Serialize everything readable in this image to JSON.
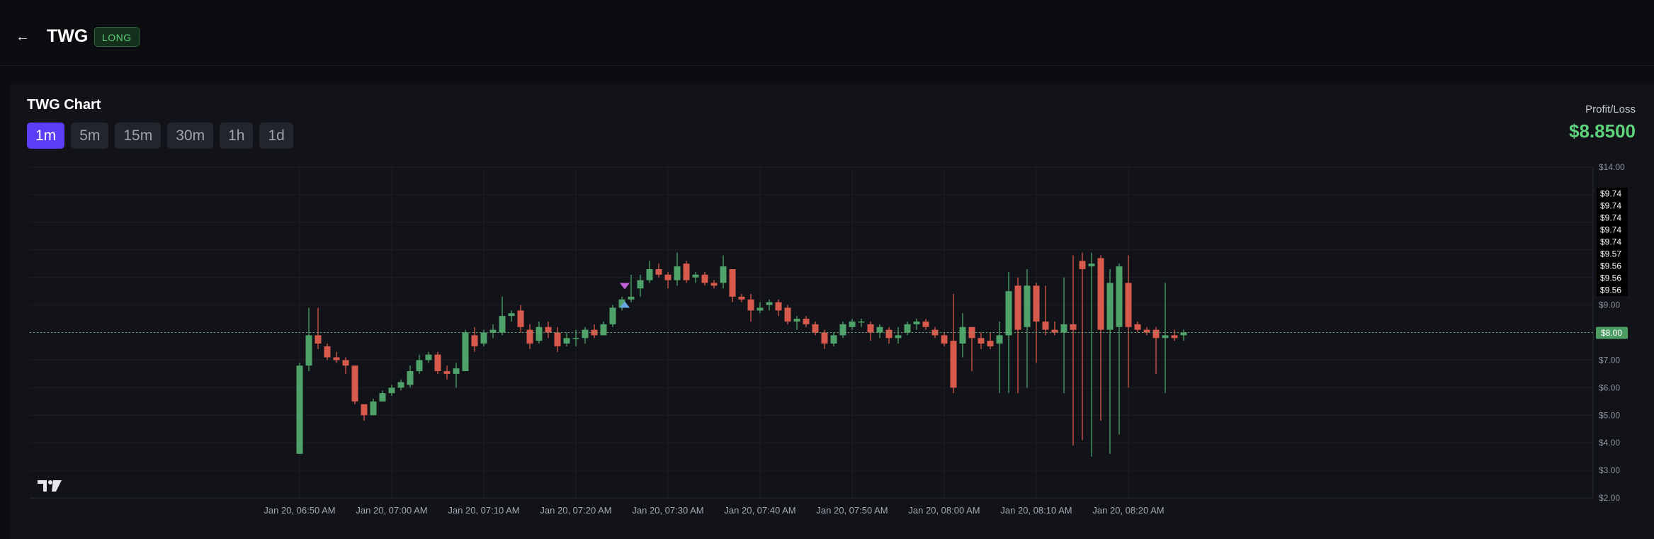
{
  "header": {
    "back_icon": "arrow-left-icon",
    "symbol": "TWG",
    "side_badge": "LONG"
  },
  "chart_panel": {
    "title": "TWG Chart",
    "timeframes": [
      "1m",
      "5m",
      "15m",
      "30m",
      "1h",
      "1d"
    ],
    "active_timeframe": "1m",
    "pnl_label": "Profit/Loss",
    "pnl_value": "$8.8500",
    "colors": {
      "up": "#4fa36a",
      "down": "#d85a4c",
      "accent": "#5b3ff6",
      "pnl": "#5fd27c"
    }
  },
  "chart_data": {
    "type": "candlestick",
    "title": "",
    "xlabel": "",
    "ylabel": "",
    "ylim": [
      2,
      14
    ],
    "y_ticks": [
      {
        "value": 2,
        "label": "$2.00"
      },
      {
        "value": 3,
        "label": "$3.00"
      },
      {
        "value": 4,
        "label": "$4.00"
      },
      {
        "value": 5,
        "label": "$5.00"
      },
      {
        "value": 6,
        "label": "$6.00"
      },
      {
        "value": 7,
        "label": "$7.00"
      },
      {
        "value": 9,
        "label": "$9.00"
      },
      {
        "value": 14,
        "label": "$14.00"
      }
    ],
    "x_ticks": [
      {
        "index": 0,
        "label": "Jan 20, 06:50 AM"
      },
      {
        "index": 10,
        "label": "Jan 20, 07:00 AM"
      },
      {
        "index": 20,
        "label": "Jan 20, 07:10 AM"
      },
      {
        "index": 30,
        "label": "Jan 20, 07:20 AM"
      },
      {
        "index": 40,
        "label": "Jan 20, 07:30 AM"
      },
      {
        "index": 50,
        "label": "Jan 20, 07:40 AM"
      },
      {
        "index": 60,
        "label": "Jan 20, 07:50 AM"
      },
      {
        "index": 70,
        "label": "Jan 20, 08:00 AM"
      },
      {
        "index": 80,
        "label": "Jan 20, 08:10 AM"
      },
      {
        "index": 90,
        "label": "Jan 20, 08:20 AM"
      }
    ],
    "current_price": {
      "value": 8.0,
      "label": "$8.00"
    },
    "price_labels": [
      "$9.74",
      "$9.74",
      "$9.74",
      "$9.74",
      "$9.74",
      "$9.57",
      "$9.56",
      "$9.56",
      "$9.56"
    ],
    "grid": true,
    "candles": [
      {
        "o": 3.6,
        "h": 6.9,
        "l": 3.6,
        "c": 6.8
      },
      {
        "o": 6.8,
        "h": 8.9,
        "l": 6.6,
        "c": 7.9
      },
      {
        "o": 7.9,
        "h": 8.9,
        "l": 7.4,
        "c": 7.6
      },
      {
        "o": 7.5,
        "h": 7.6,
        "l": 7.0,
        "c": 7.1
      },
      {
        "o": 7.1,
        "h": 7.3,
        "l": 6.9,
        "c": 7.0
      },
      {
        "o": 7.0,
        "h": 7.1,
        "l": 6.5,
        "c": 6.8
      },
      {
        "o": 6.8,
        "h": 6.8,
        "l": 5.4,
        "c": 5.5
      },
      {
        "o": 5.4,
        "h": 5.4,
        "l": 4.8,
        "c": 5.0
      },
      {
        "o": 5.0,
        "h": 5.6,
        "l": 5.0,
        "c": 5.5
      },
      {
        "o": 5.5,
        "h": 5.9,
        "l": 5.5,
        "c": 5.8
      },
      {
        "o": 5.8,
        "h": 6.1,
        "l": 5.7,
        "c": 6.0
      },
      {
        "o": 6.0,
        "h": 6.3,
        "l": 5.9,
        "c": 6.2
      },
      {
        "o": 6.1,
        "h": 6.8,
        "l": 6.0,
        "c": 6.6
      },
      {
        "o": 6.6,
        "h": 7.2,
        "l": 6.5,
        "c": 7.0
      },
      {
        "o": 7.0,
        "h": 7.3,
        "l": 6.9,
        "c": 7.2
      },
      {
        "o": 7.2,
        "h": 7.3,
        "l": 6.5,
        "c": 6.6
      },
      {
        "o": 6.6,
        "h": 6.8,
        "l": 6.3,
        "c": 6.5
      },
      {
        "o": 6.5,
        "h": 6.9,
        "l": 6.0,
        "c": 6.7
      },
      {
        "o": 6.6,
        "h": 8.1,
        "l": 6.6,
        "c": 8.0
      },
      {
        "o": 7.9,
        "h": 8.2,
        "l": 7.3,
        "c": 7.5
      },
      {
        "o": 7.6,
        "h": 8.1,
        "l": 7.5,
        "c": 8.0
      },
      {
        "o": 8.0,
        "h": 8.3,
        "l": 7.8,
        "c": 8.1
      },
      {
        "o": 8.0,
        "h": 9.3,
        "l": 7.9,
        "c": 8.6
      },
      {
        "o": 8.6,
        "h": 8.8,
        "l": 8.4,
        "c": 8.7
      },
      {
        "o": 8.8,
        "h": 9.0,
        "l": 8.0,
        "c": 8.2
      },
      {
        "o": 8.1,
        "h": 8.3,
        "l": 7.4,
        "c": 7.6
      },
      {
        "o": 7.7,
        "h": 8.4,
        "l": 7.6,
        "c": 8.2
      },
      {
        "o": 8.2,
        "h": 8.4,
        "l": 7.8,
        "c": 8.0
      },
      {
        "o": 8.0,
        "h": 8.2,
        "l": 7.3,
        "c": 7.5
      },
      {
        "o": 7.6,
        "h": 8.0,
        "l": 7.5,
        "c": 7.8
      },
      {
        "o": 7.8,
        "h": 8.1,
        "l": 7.5,
        "c": 7.8
      },
      {
        "o": 7.8,
        "h": 8.2,
        "l": 7.6,
        "c": 8.1
      },
      {
        "o": 8.1,
        "h": 8.3,
        "l": 7.8,
        "c": 7.9
      },
      {
        "o": 7.9,
        "h": 8.4,
        "l": 7.9,
        "c": 8.3
      },
      {
        "o": 8.3,
        "h": 9.0,
        "l": 8.2,
        "c": 8.9
      },
      {
        "o": 8.9,
        "h": 9.3,
        "l": 8.8,
        "c": 9.2
      },
      {
        "o": 9.2,
        "h": 10.1,
        "l": 9.1,
        "c": 9.3
      },
      {
        "o": 9.6,
        "h": 10.1,
        "l": 9.3,
        "c": 9.9
      },
      {
        "o": 9.9,
        "h": 10.6,
        "l": 9.8,
        "c": 10.3
      },
      {
        "o": 10.3,
        "h": 10.5,
        "l": 10.0,
        "c": 10.1
      },
      {
        "o": 10.1,
        "h": 10.2,
        "l": 9.6,
        "c": 9.9
      },
      {
        "o": 9.9,
        "h": 10.9,
        "l": 9.7,
        "c": 10.4
      },
      {
        "o": 10.5,
        "h": 10.6,
        "l": 9.8,
        "c": 9.9
      },
      {
        "o": 10.0,
        "h": 10.2,
        "l": 9.8,
        "c": 10.1
      },
      {
        "o": 10.1,
        "h": 10.2,
        "l": 9.7,
        "c": 9.8
      },
      {
        "o": 9.8,
        "h": 9.9,
        "l": 9.6,
        "c": 9.7
      },
      {
        "o": 9.8,
        "h": 10.8,
        "l": 9.6,
        "c": 10.4
      },
      {
        "o": 10.3,
        "h": 10.3,
        "l": 9.1,
        "c": 9.3
      },
      {
        "o": 9.3,
        "h": 9.4,
        "l": 9.1,
        "c": 9.2
      },
      {
        "o": 9.2,
        "h": 9.4,
        "l": 8.4,
        "c": 8.8
      },
      {
        "o": 8.8,
        "h": 9.1,
        "l": 8.7,
        "c": 8.9
      },
      {
        "o": 9.0,
        "h": 9.2,
        "l": 8.8,
        "c": 9.1
      },
      {
        "o": 9.1,
        "h": 9.2,
        "l": 8.6,
        "c": 8.8
      },
      {
        "o": 8.9,
        "h": 9.0,
        "l": 8.3,
        "c": 8.4
      },
      {
        "o": 8.4,
        "h": 8.6,
        "l": 8.1,
        "c": 8.5
      },
      {
        "o": 8.5,
        "h": 8.6,
        "l": 8.2,
        "c": 8.3
      },
      {
        "o": 8.3,
        "h": 8.4,
        "l": 7.9,
        "c": 8.0
      },
      {
        "o": 8.0,
        "h": 8.1,
        "l": 7.4,
        "c": 7.6
      },
      {
        "o": 7.6,
        "h": 8.0,
        "l": 7.5,
        "c": 7.9
      },
      {
        "o": 7.9,
        "h": 8.4,
        "l": 7.8,
        "c": 8.3
      },
      {
        "o": 8.2,
        "h": 8.5,
        "l": 8.1,
        "c": 8.4
      },
      {
        "o": 8.4,
        "h": 8.5,
        "l": 8.2,
        "c": 8.4
      },
      {
        "o": 8.3,
        "h": 8.4,
        "l": 7.7,
        "c": 8.0
      },
      {
        "o": 8.0,
        "h": 8.3,
        "l": 7.8,
        "c": 8.2
      },
      {
        "o": 8.1,
        "h": 8.2,
        "l": 7.6,
        "c": 7.8
      },
      {
        "o": 7.8,
        "h": 8.2,
        "l": 7.6,
        "c": 7.9
      },
      {
        "o": 8.0,
        "h": 8.4,
        "l": 7.9,
        "c": 8.3
      },
      {
        "o": 8.3,
        "h": 8.5,
        "l": 8.1,
        "c": 8.4
      },
      {
        "o": 8.4,
        "h": 8.5,
        "l": 8.1,
        "c": 8.2
      },
      {
        "o": 8.1,
        "h": 8.2,
        "l": 7.8,
        "c": 7.9
      },
      {
        "o": 7.9,
        "h": 8.0,
        "l": 7.5,
        "c": 7.6
      },
      {
        "o": 7.7,
        "h": 9.4,
        "l": 5.8,
        "c": 6.0
      },
      {
        "o": 7.6,
        "h": 8.7,
        "l": 7.1,
        "c": 8.2
      },
      {
        "o": 8.2,
        "h": 8.2,
        "l": 6.6,
        "c": 7.8
      },
      {
        "o": 7.8,
        "h": 8.0,
        "l": 7.4,
        "c": 7.6
      },
      {
        "o": 7.7,
        "h": 8.0,
        "l": 7.4,
        "c": 7.5
      },
      {
        "o": 7.6,
        "h": 8.4,
        "l": 5.8,
        "c": 7.9
      },
      {
        "o": 7.9,
        "h": 10.2,
        "l": 5.8,
        "c": 9.5
      },
      {
        "o": 9.7,
        "h": 10.0,
        "l": 5.8,
        "c": 8.1
      },
      {
        "o": 8.2,
        "h": 10.3,
        "l": 6.0,
        "c": 9.7
      },
      {
        "o": 9.7,
        "h": 9.8,
        "l": 6.9,
        "c": 8.4
      },
      {
        "o": 8.4,
        "h": 9.7,
        "l": 7.9,
        "c": 8.1
      },
      {
        "o": 8.1,
        "h": 8.4,
        "l": 7.9,
        "c": 8.0
      },
      {
        "o": 8.0,
        "h": 10.0,
        "l": 5.8,
        "c": 8.3
      },
      {
        "o": 8.3,
        "h": 10.8,
        "l": 3.9,
        "c": 8.1
      },
      {
        "o": 10.6,
        "h": 10.9,
        "l": 4.1,
        "c": 10.3
      },
      {
        "o": 10.4,
        "h": 10.9,
        "l": 3.5,
        "c": 10.5
      },
      {
        "o": 10.7,
        "h": 10.8,
        "l": 4.8,
        "c": 8.1
      },
      {
        "o": 8.1,
        "h": 10.3,
        "l": 3.6,
        "c": 9.8
      },
      {
        "o": 8.2,
        "h": 10.5,
        "l": 4.3,
        "c": 10.4
      },
      {
        "o": 9.8,
        "h": 10.8,
        "l": 6.0,
        "c": 8.2
      },
      {
        "o": 8.3,
        "h": 8.4,
        "l": 8.0,
        "c": 8.1
      },
      {
        "o": 8.1,
        "h": 8.2,
        "l": 7.9,
        "c": 8.0
      },
      {
        "o": 8.1,
        "h": 8.2,
        "l": 6.5,
        "c": 7.8
      },
      {
        "o": 7.8,
        "h": 9.8,
        "l": 5.8,
        "c": 7.9
      },
      {
        "o": 7.9,
        "h": 8.1,
        "l": 7.7,
        "c": 7.8
      },
      {
        "o": 7.9,
        "h": 8.1,
        "l": 7.7,
        "c": 8.0
      }
    ]
  },
  "watermark_icon": "tradingview-logo-icon"
}
